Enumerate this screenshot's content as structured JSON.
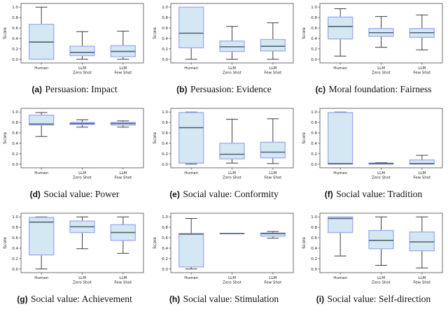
{
  "colors": {
    "box_fill": "#d4e8f3",
    "box_edge": "#a4aef0",
    "median": "#4f6370",
    "whisker": "#3f3f3f",
    "spine": "#4a4a4a",
    "tick_text": "#222222"
  },
  "axes": {
    "ylabel": "Score",
    "yticks": [
      "0.0",
      "0.2",
      "0.4",
      "0.6",
      "0.8",
      "1.0"
    ],
    "ytick_values": [
      0.0,
      0.2,
      0.4,
      0.6,
      0.8,
      1.0
    ],
    "ylim": [
      -0.07,
      1.07
    ],
    "categories": [
      [
        "Human"
      ],
      [
        "LLM",
        "Zero Shot"
      ],
      [
        "LLM",
        "Few Shot"
      ]
    ]
  },
  "chart_data": [
    {
      "type": "boxplot",
      "label": "(a)",
      "title": "Persuasion: Impact",
      "ylabel": "Score",
      "categories": [
        "Human",
        "LLM Zero Shot",
        "LLM Few Shot"
      ],
      "boxes": [
        {
          "whisker_low": 0.0,
          "q1": 0.0,
          "median": 0.33,
          "q3": 0.67,
          "whisker_high": 1.0
        },
        {
          "whisker_low": 0.0,
          "q1": 0.07,
          "median": 0.13,
          "q3": 0.25,
          "whisker_high": 0.53
        },
        {
          "whisker_low": 0.0,
          "q1": 0.05,
          "median": 0.15,
          "q3": 0.26,
          "whisker_high": 0.54
        }
      ]
    },
    {
      "type": "boxplot",
      "label": "(b)",
      "title": "Persuasion: Evidence",
      "ylabel": "Score",
      "categories": [
        "Human",
        "LLM Zero Shot",
        "LLM Few Shot"
      ],
      "boxes": [
        {
          "whisker_low": 0.0,
          "q1": 0.22,
          "median": 0.5,
          "q3": 1.0,
          "whisker_high": 1.0
        },
        {
          "whisker_low": 0.0,
          "q1": 0.15,
          "median": 0.24,
          "q3": 0.35,
          "whisker_high": 0.63
        },
        {
          "whisker_low": 0.0,
          "q1": 0.16,
          "median": 0.25,
          "q3": 0.38,
          "whisker_high": 0.7
        }
      ]
    },
    {
      "type": "boxplot",
      "label": "(c)",
      "title": "Moral foundation: Fairness",
      "ylabel": "Score",
      "categories": [
        "Human",
        "LLM Zero Shot",
        "LLM Few Shot"
      ],
      "boxes": [
        {
          "whisker_low": 0.06,
          "q1": 0.39,
          "median": 0.63,
          "q3": 0.81,
          "whisker_high": 0.97
        },
        {
          "whisker_low": 0.23,
          "q1": 0.44,
          "median": 0.51,
          "q3": 0.59,
          "whisker_high": 0.82
        },
        {
          "whisker_low": 0.18,
          "q1": 0.42,
          "median": 0.51,
          "q3": 0.59,
          "whisker_high": 0.85
        }
      ]
    },
    {
      "type": "boxplot",
      "label": "(d)",
      "title": "Social value: Power",
      "ylabel": "Score",
      "categories": [
        "Human",
        "LLM Zero Shot",
        "LLM Few Shot"
      ],
      "boxes": [
        {
          "whisker_low": 0.53,
          "q1": 0.75,
          "median": 0.77,
          "q3": 0.94,
          "whisker_high": 0.99
        },
        {
          "whisker_low": 0.71,
          "q1": 0.76,
          "median": 0.78,
          "q3": 0.8,
          "whisker_high": 0.85
        },
        {
          "whisker_low": 0.71,
          "q1": 0.75,
          "median": 0.78,
          "q3": 0.8,
          "whisker_high": 0.83
        }
      ]
    },
    {
      "type": "boxplot",
      "label": "(e)",
      "title": "Social value: Conformity",
      "ylabel": "Score",
      "categories": [
        "Human",
        "LLM Zero Shot",
        "LLM Few Shot"
      ],
      "boxes": [
        {
          "whisker_low": 0.0,
          "q1": 0.02,
          "median": 0.7,
          "q3": 0.99,
          "whisker_high": 1.0
        },
        {
          "whisker_low": 0.02,
          "q1": 0.1,
          "median": 0.19,
          "q3": 0.4,
          "whisker_high": 0.86
        },
        {
          "whisker_low": 0.01,
          "q1": 0.12,
          "median": 0.23,
          "q3": 0.42,
          "whisker_high": 0.87
        }
      ]
    },
    {
      "type": "boxplot",
      "label": "(f)",
      "title": "Social value: Tradition",
      "ylabel": "Score",
      "categories": [
        "Human",
        "LLM Zero Shot",
        "LLM Few Shot"
      ],
      "boxes": [
        {
          "whisker_low": 0.0,
          "q1": 0.0,
          "median": 0.01,
          "q3": 0.99,
          "whisker_high": 1.0
        },
        {
          "whisker_low": 0.0,
          "q1": 0.0,
          "median": 0.01,
          "q3": 0.02,
          "whisker_high": 0.03
        },
        {
          "whisker_low": 0.0,
          "q1": 0.0,
          "median": 0.01,
          "q3": 0.08,
          "whisker_high": 0.17
        }
      ]
    },
    {
      "type": "boxplot",
      "label": "(g)",
      "title": "Social value: Achievement",
      "ylabel": "Score",
      "categories": [
        "Human",
        "LLM Zero Shot",
        "LLM Few Shot"
      ],
      "boxes": [
        {
          "whisker_low": 0.0,
          "q1": 0.27,
          "median": 0.9,
          "q3": 0.99,
          "whisker_high": 1.0
        },
        {
          "whisker_low": 0.39,
          "q1": 0.7,
          "median": 0.81,
          "q3": 0.92,
          "whisker_high": 1.0
        },
        {
          "whisker_low": 0.3,
          "q1": 0.55,
          "median": 0.7,
          "q3": 0.85,
          "whisker_high": 1.0
        }
      ]
    },
    {
      "type": "boxplot",
      "label": "(h)",
      "title": "Social value: Stimulation",
      "ylabel": "Score",
      "categories": [
        "Human",
        "LLM Zero Shot",
        "LLM Few Shot"
      ],
      "boxes": [
        {
          "whisker_low": 0.0,
          "q1": 0.04,
          "median": 0.67,
          "q3": 0.68,
          "whisker_high": 0.97
        },
        {
          "whisker_low": 0.68,
          "q1": 0.68,
          "median": 0.68,
          "q3": 0.68,
          "whisker_high": 0.68
        },
        {
          "whisker_low": 0.59,
          "q1": 0.63,
          "median": 0.68,
          "q3": 0.69,
          "whisker_high": 0.72
        }
      ]
    },
    {
      "type": "boxplot",
      "label": "(i)",
      "title": "Social value: Self-direction",
      "ylabel": "Score",
      "categories": [
        "Human",
        "LLM Zero Shot",
        "LLM Few Shot"
      ],
      "boxes": [
        {
          "whisker_low": 0.25,
          "q1": 0.7,
          "median": 0.97,
          "q3": 1.0,
          "whisker_high": 1.0
        },
        {
          "whisker_low": 0.07,
          "q1": 0.39,
          "median": 0.55,
          "q3": 0.74,
          "whisker_high": 1.0
        },
        {
          "whisker_low": 0.02,
          "q1": 0.35,
          "median": 0.52,
          "q3": 0.71,
          "whisker_high": 1.0
        }
      ]
    }
  ]
}
